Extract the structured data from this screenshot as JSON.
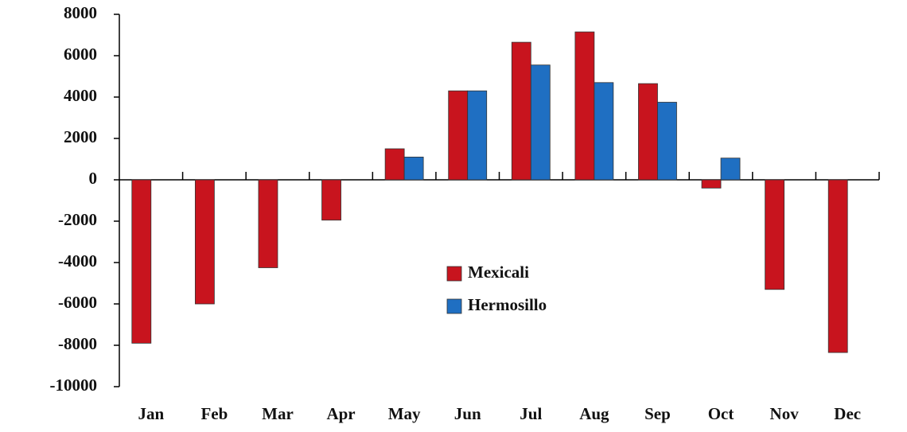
{
  "chart_data": {
    "type": "bar",
    "categories": [
      "Jan",
      "Feb",
      "Mar",
      "Apr",
      "May",
      "Jun",
      "Jul",
      "Aug",
      "Sep",
      "Oct",
      "Nov",
      "Dec"
    ],
    "series": [
      {
        "name": "Mexicali",
        "color": "#c8141e",
        "values": [
          -7900,
          -6000,
          -4250,
          -1950,
          1500,
          4300,
          6650,
          7150,
          4650,
          -400,
          -5300,
          -8350
        ]
      },
      {
        "name": "Hermosillo",
        "color": "#1f6fc2",
        "values": [
          0,
          0,
          0,
          0,
          1100,
          4300,
          5550,
          4700,
          3750,
          1050,
          0,
          0
        ]
      }
    ],
    "ylim": [
      -10000,
      8000
    ],
    "yticks": [
      -10000,
      -8000,
      -6000,
      -4000,
      -2000,
      0,
      2000,
      4000,
      6000,
      8000
    ],
    "grid": false
  }
}
